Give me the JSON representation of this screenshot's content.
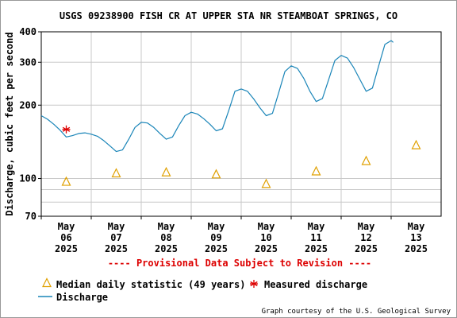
{
  "chart_data": {
    "type": "line",
    "title": "USGS 09238900 FISH CR AT UPPER STA NR STEAMBOAT SPRINGS, CO",
    "ylabel": "Discharge, cubic feet per second",
    "xlabel": "",
    "y_scale": "log",
    "ylim": [
      70,
      400
    ],
    "yticks": [
      70,
      100,
      200,
      300,
      400
    ],
    "xlim": [
      "2025-05-06T00:00",
      "2025-05-14T00:00"
    ],
    "x_tick_labels": [
      {
        "month": "May",
        "day": "06",
        "year": "2025"
      },
      {
        "month": "May",
        "day": "07",
        "year": "2025"
      },
      {
        "month": "May",
        "day": "08",
        "year": "2025"
      },
      {
        "month": "May",
        "day": "09",
        "year": "2025"
      },
      {
        "month": "May",
        "day": "10",
        "year": "2025"
      },
      {
        "month": "May",
        "day": "11",
        "year": "2025"
      },
      {
        "month": "May",
        "day": "12",
        "year": "2025"
      },
      {
        "month": "May",
        "day": "13",
        "year": "2025"
      }
    ],
    "provisional_note": "---- Provisional Data Subject to Revision ----",
    "credit": "Graph courtesy of the U.S. Geological Survey",
    "grid": true,
    "series": [
      {
        "name": "Discharge",
        "kind": "line",
        "color": "#1a85b8",
        "points": [
          [
            "2025-05-06T00:00",
            181
          ],
          [
            "2025-05-06T03:00",
            175
          ],
          [
            "2025-05-06T06:00",
            167
          ],
          [
            "2025-05-06T09:00",
            158
          ],
          [
            "2025-05-06T12:00",
            148
          ],
          [
            "2025-05-06T15:00",
            150
          ],
          [
            "2025-05-06T18:00",
            153
          ],
          [
            "2025-05-06T21:00",
            154
          ],
          [
            "2025-05-07T00:00",
            152
          ],
          [
            "2025-05-07T03:00",
            149
          ],
          [
            "2025-05-07T06:00",
            143
          ],
          [
            "2025-05-07T09:00",
            136
          ],
          [
            "2025-05-07T12:00",
            129
          ],
          [
            "2025-05-07T15:00",
            131
          ],
          [
            "2025-05-07T18:00",
            145
          ],
          [
            "2025-05-07T21:00",
            162
          ],
          [
            "2025-05-08T00:00",
            170
          ],
          [
            "2025-05-08T03:00",
            169
          ],
          [
            "2025-05-08T06:00",
            162
          ],
          [
            "2025-05-08T09:00",
            153
          ],
          [
            "2025-05-08T12:00",
            145
          ],
          [
            "2025-05-08T15:00",
            148
          ],
          [
            "2025-05-08T18:00",
            165
          ],
          [
            "2025-05-08T21:00",
            181
          ],
          [
            "2025-05-09T00:00",
            187
          ],
          [
            "2025-05-09T03:00",
            184
          ],
          [
            "2025-05-09T06:00",
            176
          ],
          [
            "2025-05-09T09:00",
            167
          ],
          [
            "2025-05-09T12:00",
            157
          ],
          [
            "2025-05-09T15:00",
            160
          ],
          [
            "2025-05-09T18:00",
            190
          ],
          [
            "2025-05-09T21:00",
            228
          ],
          [
            "2025-05-10T00:00",
            233
          ],
          [
            "2025-05-10T03:00",
            228
          ],
          [
            "2025-05-10T06:00",
            212
          ],
          [
            "2025-05-10T09:00",
            195
          ],
          [
            "2025-05-10T12:00",
            181
          ],
          [
            "2025-05-10T15:00",
            185
          ],
          [
            "2025-05-10T18:00",
            225
          ],
          [
            "2025-05-10T21:00",
            275
          ],
          [
            "2025-05-11T00:00",
            290
          ],
          [
            "2025-05-11T03:00",
            283
          ],
          [
            "2025-05-11T06:00",
            258
          ],
          [
            "2025-05-11T09:00",
            228
          ],
          [
            "2025-05-11T12:00",
            207
          ],
          [
            "2025-05-11T15:00",
            213
          ],
          [
            "2025-05-11T18:00",
            255
          ],
          [
            "2025-05-11T21:00",
            305
          ],
          [
            "2025-05-12T00:00",
            320
          ],
          [
            "2025-05-12T03:00",
            312
          ],
          [
            "2025-05-12T06:00",
            285
          ],
          [
            "2025-05-12T09:00",
            255
          ],
          [
            "2025-05-12T12:00",
            228
          ],
          [
            "2025-05-12T15:00",
            235
          ],
          [
            "2025-05-12T18:00",
            290
          ],
          [
            "2025-05-12T21:00",
            355
          ],
          [
            "2025-05-13T00:00",
            368
          ],
          [
            "2025-05-13T01:00",
            362
          ]
        ]
      },
      {
        "name": "Median daily statistic (49 years)",
        "kind": "triangle",
        "color": "#e0a000",
        "points": [
          [
            "2025-05-06T12:00",
            97
          ],
          [
            "2025-05-07T12:00",
            105
          ],
          [
            "2025-05-08T12:00",
            106
          ],
          [
            "2025-05-09T12:00",
            104
          ],
          [
            "2025-05-10T12:00",
            95
          ],
          [
            "2025-05-11T12:00",
            107
          ],
          [
            "2025-05-12T12:00",
            118
          ],
          [
            "2025-05-13T12:00",
            137
          ]
        ]
      },
      {
        "name": "Measured discharge",
        "kind": "asterisk",
        "color": "#dd0000",
        "points": [
          [
            "2025-05-06T12:00",
            159
          ]
        ]
      }
    ]
  }
}
